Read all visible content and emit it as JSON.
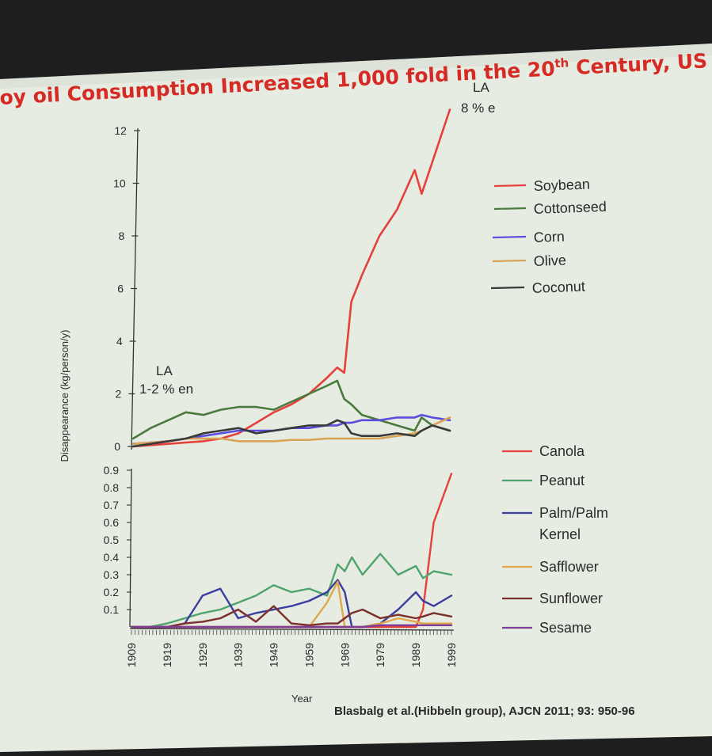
{
  "slide": {
    "title": "oy oil Consumption Increased 1,000 fold in the 20",
    "title_sup": "th",
    "title_end": " Century, US",
    "citation": "Blasbalg  et al.(Hibbeln  group), AJCN 2011;  93:  950-96"
  },
  "colors": {
    "background": "#e6ece2",
    "title": "#d62a24",
    "Soybean": "#e5413b",
    "Cottonseed": "#4a7a3e",
    "Corn": "#5a4de0",
    "Olive": "#d8a355",
    "Coconut": "#3a3a3a",
    "Canola": "#e5413b",
    "Peanut": "#4fa36c",
    "Palm/Palm Kernel": "#3b3e9e",
    "Safflower": "#e0a84a",
    "Sunflower": "#7a2f2a",
    "Sesame": "#7d3c98"
  },
  "chart_data": [
    {
      "type": "line",
      "panel": "top",
      "ylabel": "Disappearance (kg/person/y)",
      "ylim": [
        0,
        12
      ],
      "yticks": [
        "0",
        "2",
        "4",
        "6",
        "8",
        "10",
        "12"
      ],
      "x": [
        1909,
        1914,
        1919,
        1924,
        1929,
        1934,
        1939,
        1944,
        1949,
        1954,
        1959,
        1964,
        1967,
        1969,
        1971,
        1974,
        1979,
        1984,
        1989,
        1991,
        1994,
        1999
      ],
      "series": [
        {
          "name": "Soybean",
          "values": [
            0.0,
            0.05,
            0.1,
            0.15,
            0.2,
            0.3,
            0.5,
            0.9,
            1.3,
            1.6,
            2.0,
            2.6,
            3.0,
            2.8,
            5.5,
            6.5,
            8.0,
            9.0,
            10.5,
            9.6,
            10.8,
            12.8
          ]
        },
        {
          "name": "Cottonseed",
          "values": [
            0.3,
            0.7,
            1.0,
            1.3,
            1.2,
            1.4,
            1.5,
            1.5,
            1.4,
            1.7,
            2.0,
            2.3,
            2.5,
            1.8,
            1.6,
            1.2,
            1.0,
            0.8,
            0.6,
            1.1,
            0.8,
            0.6
          ]
        },
        {
          "name": "Corn",
          "values": [
            0.1,
            0.15,
            0.2,
            0.3,
            0.4,
            0.5,
            0.6,
            0.6,
            0.6,
            0.7,
            0.7,
            0.8,
            0.8,
            0.9,
            0.9,
            1.0,
            1.0,
            1.1,
            1.1,
            1.2,
            1.1,
            1.0
          ]
        },
        {
          "name": "Olive",
          "values": [
            0.1,
            0.15,
            0.2,
            0.3,
            0.3,
            0.3,
            0.2,
            0.2,
            0.2,
            0.25,
            0.25,
            0.3,
            0.3,
            0.3,
            0.3,
            0.3,
            0.3,
            0.4,
            0.5,
            0.6,
            0.8,
            1.1
          ]
        },
        {
          "name": "Coconut",
          "values": [
            0.0,
            0.1,
            0.2,
            0.3,
            0.5,
            0.6,
            0.7,
            0.5,
            0.6,
            0.7,
            0.8,
            0.8,
            1.0,
            0.9,
            0.5,
            0.4,
            0.4,
            0.5,
            0.4,
            0.6,
            0.8,
            0.6
          ]
        }
      ],
      "legend": [
        "Soybean",
        "Cottonseed",
        "Corn",
        "Olive",
        "Coconut"
      ],
      "annotations": [
        {
          "text": "LA",
          "text2": "1-2 % en"
        },
        {
          "text": "LA",
          "text2": "8 % e"
        }
      ]
    },
    {
      "type": "line",
      "panel": "bottom",
      "xlabel": "Year",
      "ylim": [
        0,
        0.9
      ],
      "yticks": [
        "0.1",
        "0.2",
        "0.3",
        "0.4",
        "0.5",
        "0.6",
        "0.7",
        "0.8",
        "0.9"
      ],
      "xticks": [
        "1909",
        "1919",
        "1929",
        "1939",
        "1949",
        "1959",
        "1969",
        "1979",
        "1989",
        "1999"
      ],
      "x": [
        1909,
        1914,
        1919,
        1924,
        1929,
        1934,
        1939,
        1944,
        1949,
        1954,
        1959,
        1964,
        1967,
        1969,
        1971,
        1974,
        1979,
        1984,
        1989,
        1991,
        1994,
        1999
      ],
      "series": [
        {
          "name": "Canola",
          "values": [
            0,
            0,
            0,
            0,
            0,
            0,
            0,
            0,
            0,
            0,
            0,
            0,
            0,
            0,
            0,
            0,
            0,
            0,
            0,
            0.1,
            0.6,
            0.88
          ]
        },
        {
          "name": "Peanut",
          "values": [
            0,
            0,
            0.02,
            0.05,
            0.08,
            0.1,
            0.14,
            0.18,
            0.24,
            0.2,
            0.22,
            0.18,
            0.36,
            0.32,
            0.4,
            0.3,
            0.42,
            0.3,
            0.35,
            0.28,
            0.32,
            0.3
          ]
        },
        {
          "name": "Palm/Palm Kernel",
          "values": [
            0,
            0,
            0,
            0.02,
            0.18,
            0.22,
            0.05,
            0.08,
            0.1,
            0.12,
            0.15,
            0.2,
            0.27,
            0.2,
            0.0,
            0.0,
            0.02,
            0.1,
            0.2,
            0.15,
            0.12,
            0.18
          ]
        },
        {
          "name": "Safflower",
          "values": [
            0,
            0,
            0,
            0,
            0,
            0,
            0,
            0,
            0,
            0,
            0,
            0.14,
            0.26,
            0.0,
            0.0,
            0.0,
            0.02,
            0.05,
            0.03,
            0.02,
            0.02,
            0.02
          ]
        },
        {
          "name": "Sunflower",
          "values": [
            0,
            0,
            0,
            0.02,
            0.03,
            0.05,
            0.1,
            0.03,
            0.12,
            0.02,
            0.01,
            0.02,
            0.02,
            0.05,
            0.08,
            0.1,
            0.05,
            0.07,
            0.05,
            0.06,
            0.08,
            0.06
          ]
        },
        {
          "name": "Sesame",
          "values": [
            0,
            0,
            0,
            0,
            0,
            0,
            0,
            0,
            0,
            0,
            0,
            0,
            0,
            0,
            0,
            0,
            0.01,
            0.01,
            0.01,
            0.01,
            0.01,
            0.01
          ]
        }
      ],
      "legend": [
        "Canola",
        "Peanut",
        "Palm/Palm Kernel",
        "Safflower",
        "Sunflower",
        "Sesame"
      ],
      "legend_lines": [
        [
          "Canola"
        ],
        [
          "Peanut"
        ],
        [
          "Palm/Palm",
          "Kernel"
        ],
        [
          "Safflower"
        ],
        [
          "Sunflower"
        ],
        [
          "Sesame"
        ]
      ]
    }
  ]
}
